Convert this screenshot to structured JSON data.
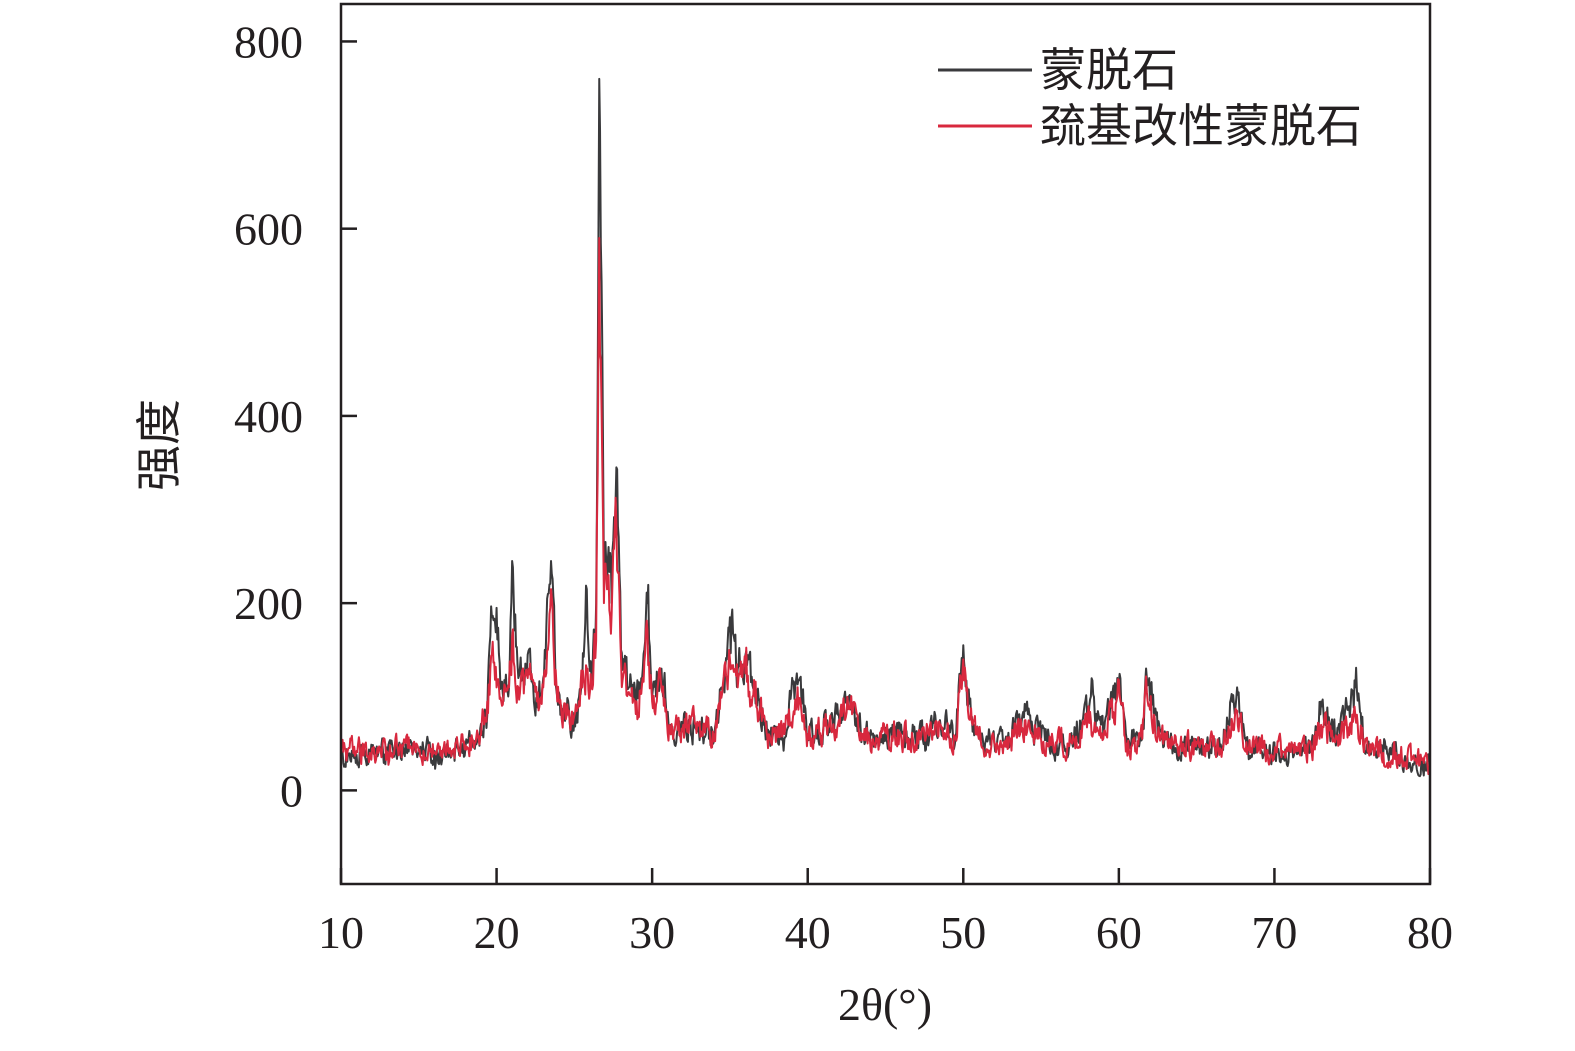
{
  "chart_data": {
    "type": "line",
    "title": "",
    "xlabel": "2θ(°)",
    "ylabel": "强度",
    "xlim": [
      10,
      80
    ],
    "ylim": [
      -100,
      840
    ],
    "xticks": [
      "10",
      "20",
      "30",
      "40",
      "50",
      "60",
      "70",
      "80"
    ],
    "yticks": [
      "0",
      "200",
      "400",
      "600",
      "800"
    ],
    "grid": false,
    "legend": {
      "placement": "top-right"
    },
    "series": [
      {
        "name": "蒙脱石",
        "color": "#3a3a3c",
        "points": [
          [
            10,
            40
          ],
          [
            11,
            38
          ],
          [
            12,
            42
          ],
          [
            13,
            40
          ],
          [
            14,
            45
          ],
          [
            15,
            40
          ],
          [
            16,
            42
          ],
          [
            17,
            40
          ],
          [
            18,
            45
          ],
          [
            18.8,
            55
          ],
          [
            19.4,
            80
          ],
          [
            19.7,
            185
          ],
          [
            20.0,
            195
          ],
          [
            20.3,
            110
          ],
          [
            20.8,
            110
          ],
          [
            21.0,
            245
          ],
          [
            21.4,
            120
          ],
          [
            22.0,
            145
          ],
          [
            22.6,
            100
          ],
          [
            23.0,
            120
          ],
          [
            23.5,
            245
          ],
          [
            23.9,
            100
          ],
          [
            24.5,
            80
          ],
          [
            25.0,
            75
          ],
          [
            25.5,
            110
          ],
          [
            25.8,
            215
          ],
          [
            26.1,
            120
          ],
          [
            26.4,
            200
          ],
          [
            26.6,
            760
          ],
          [
            26.9,
            230
          ],
          [
            27.2,
            260
          ],
          [
            27.4,
            200
          ],
          [
            27.7,
            345
          ],
          [
            28.0,
            150
          ],
          [
            28.5,
            110
          ],
          [
            29.0,
            100
          ],
          [
            29.4,
            130
          ],
          [
            29.7,
            200
          ],
          [
            30.0,
            100
          ],
          [
            30.6,
            130
          ],
          [
            31.2,
            60
          ],
          [
            32.0,
            70
          ],
          [
            33.0,
            65
          ],
          [
            34.0,
            60
          ],
          [
            34.8,
            140
          ],
          [
            35.0,
            185
          ],
          [
            35.5,
            130
          ],
          [
            36.0,
            145
          ],
          [
            36.6,
            110
          ],
          [
            37.5,
            60
          ],
          [
            38.5,
            55
          ],
          [
            39.3,
            125
          ],
          [
            40.0,
            60
          ],
          [
            41.0,
            65
          ],
          [
            42.0,
            80
          ],
          [
            42.6,
            100
          ],
          [
            43.5,
            60
          ],
          [
            44.5,
            55
          ],
          [
            45.5,
            60
          ],
          [
            46.5,
            55
          ],
          [
            47.5,
            60
          ],
          [
            48.5,
            75
          ],
          [
            49.5,
            55
          ],
          [
            50.0,
            155
          ],
          [
            50.3,
            90
          ],
          [
            51.0,
            60
          ],
          [
            52.0,
            50
          ],
          [
            53.0,
            55
          ],
          [
            54.0,
            85
          ],
          [
            55.0,
            55
          ],
          [
            56.0,
            50
          ],
          [
            57.0,
            50
          ],
          [
            58.2,
            100
          ],
          [
            59.0,
            60
          ],
          [
            59.9,
            120
          ],
          [
            60.5,
            55
          ],
          [
            61.5,
            55
          ],
          [
            61.8,
            120
          ],
          [
            62.5,
            60
          ],
          [
            63.5,
            50
          ],
          [
            64.5,
            45
          ],
          [
            65.5,
            45
          ],
          [
            66.5,
            45
          ],
          [
            67.6,
            110
          ],
          [
            68.3,
            45
          ],
          [
            69.5,
            40
          ],
          [
            70.5,
            40
          ],
          [
            71.5,
            40
          ],
          [
            72.5,
            45
          ],
          [
            73.0,
            95
          ],
          [
            74.0,
            55
          ],
          [
            75.2,
            110
          ],
          [
            76.0,
            40
          ],
          [
            77.0,
            40
          ],
          [
            78.0,
            35
          ],
          [
            79.0,
            30
          ],
          [
            80,
            25
          ]
        ]
      },
      {
        "name": "巯基改性蒙脱石",
        "color": "#d8283e",
        "points": [
          [
            10,
            45
          ],
          [
            11,
            42
          ],
          [
            12,
            45
          ],
          [
            13,
            40
          ],
          [
            14,
            48
          ],
          [
            15,
            42
          ],
          [
            16,
            40
          ],
          [
            17,
            45
          ],
          [
            18,
            48
          ],
          [
            18.8,
            60
          ],
          [
            19.4,
            95
          ],
          [
            19.7,
            145
          ],
          [
            20.0,
            110
          ],
          [
            20.3,
            95
          ],
          [
            20.8,
            110
          ],
          [
            21.0,
            165
          ],
          [
            21.4,
            110
          ],
          [
            22.0,
            120
          ],
          [
            22.6,
            95
          ],
          [
            23.0,
            110
          ],
          [
            23.5,
            215
          ],
          [
            23.9,
            95
          ],
          [
            24.5,
            80
          ],
          [
            25.0,
            80
          ],
          [
            25.5,
            110
          ],
          [
            25.8,
            130
          ],
          [
            26.1,
            110
          ],
          [
            26.4,
            160
          ],
          [
            26.6,
            590
          ],
          [
            26.9,
            200
          ],
          [
            27.2,
            230
          ],
          [
            27.4,
            190
          ],
          [
            27.7,
            285
          ],
          [
            28.0,
            140
          ],
          [
            28.5,
            105
          ],
          [
            29.0,
            95
          ],
          [
            29.4,
            120
          ],
          [
            29.7,
            170
          ],
          [
            30.0,
            95
          ],
          [
            30.6,
            110
          ],
          [
            31.2,
            60
          ],
          [
            32.0,
            70
          ],
          [
            33.0,
            70
          ],
          [
            34.0,
            60
          ],
          [
            34.8,
            120
          ],
          [
            35.0,
            140
          ],
          [
            35.5,
            110
          ],
          [
            36.0,
            125
          ],
          [
            36.6,
            100
          ],
          [
            37.5,
            60
          ],
          [
            38.5,
            60
          ],
          [
            39.3,
            95
          ],
          [
            40.0,
            60
          ],
          [
            41.0,
            65
          ],
          [
            42.0,
            75
          ],
          [
            42.6,
            90
          ],
          [
            43.5,
            60
          ],
          [
            44.5,
            55
          ],
          [
            45.5,
            60
          ],
          [
            46.5,
            55
          ],
          [
            47.5,
            60
          ],
          [
            48.5,
            70
          ],
          [
            49.5,
            55
          ],
          [
            50.0,
            140
          ],
          [
            50.3,
            85
          ],
          [
            51.0,
            55
          ],
          [
            52.0,
            50
          ],
          [
            53.0,
            55
          ],
          [
            54.0,
            75
          ],
          [
            55.0,
            55
          ],
          [
            56.0,
            50
          ],
          [
            57.0,
            50
          ],
          [
            58.2,
            75
          ],
          [
            59.0,
            55
          ],
          [
            59.9,
            100
          ],
          [
            60.5,
            50
          ],
          [
            61.5,
            55
          ],
          [
            61.8,
            105
          ],
          [
            62.5,
            60
          ],
          [
            63.5,
            50
          ],
          [
            64.5,
            48
          ],
          [
            65.5,
            45
          ],
          [
            66.5,
            45
          ],
          [
            67.6,
            85
          ],
          [
            68.3,
            45
          ],
          [
            69.5,
            42
          ],
          [
            70.5,
            42
          ],
          [
            71.5,
            42
          ],
          [
            72.5,
            48
          ],
          [
            73.0,
            70
          ],
          [
            74.0,
            55
          ],
          [
            75.2,
            80
          ],
          [
            76.0,
            42
          ],
          [
            77.0,
            40
          ],
          [
            78.0,
            38
          ],
          [
            79.0,
            32
          ],
          [
            80,
            28
          ]
        ]
      }
    ]
  }
}
